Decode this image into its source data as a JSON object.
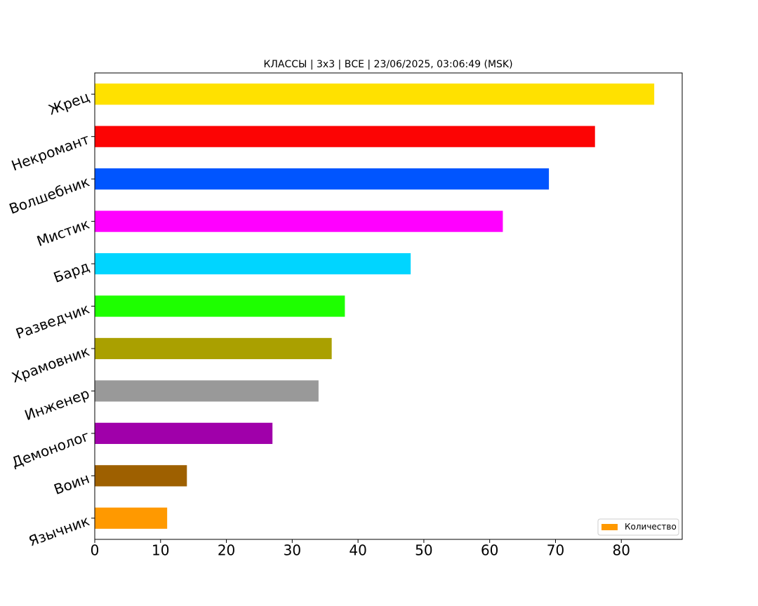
{
  "chart_data": {
    "type": "barh",
    "title": "КЛАССЫ | 3x3 | ВСЕ | 23/06/2025, 03:06:49 (MSK)",
    "categories": [
      "Жрец",
      "Некромант",
      "Волшебник",
      "Мистик",
      "Бард",
      "Разведчик",
      "Храмовник",
      "Инженер",
      "Демонолог",
      "Воин",
      "Язычник"
    ],
    "series": [
      {
        "name": "Количество",
        "color": "#ff9900",
        "values": [
          85,
          76,
          69,
          62,
          48,
          38,
          36,
          34,
          27,
          14,
          11
        ],
        "colors": [
          "#ffe100",
          "#fc0404",
          "#0055ff",
          "#ff00ff",
          "#00d5ff",
          "#1eff00",
          "#aaa000",
          "#999999",
          "#a000aa",
          "#9e6000",
          "#ff9900"
        ]
      }
    ],
    "xlim": [
      0,
      89.25
    ],
    "xticks": [
      0,
      10,
      20,
      30,
      40,
      50,
      60,
      70,
      80
    ],
    "legend": "lower right",
    "grid": false
  }
}
